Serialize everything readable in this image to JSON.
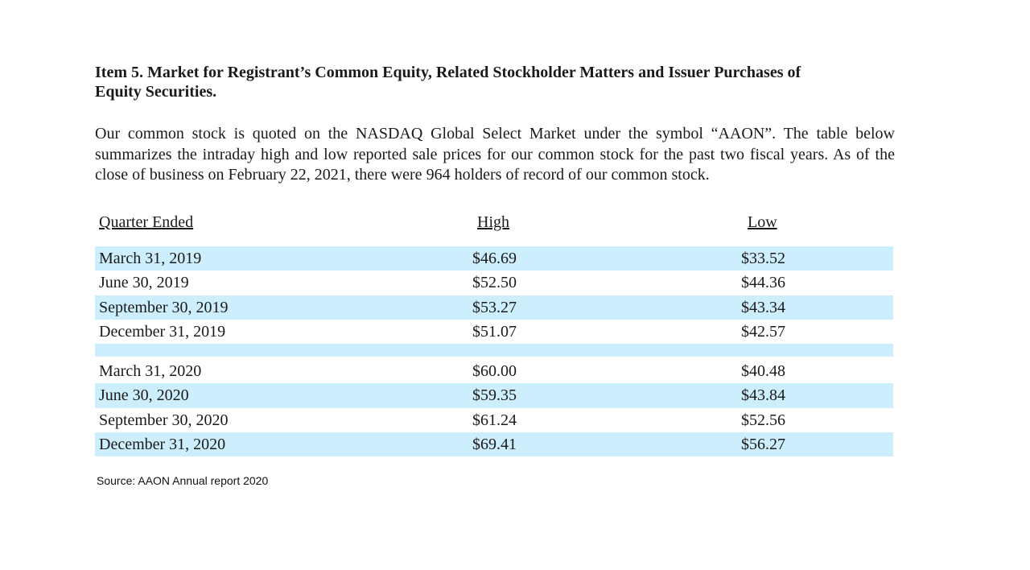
{
  "heading_line1": "Item 5.  Market for Registrant’s Common Equity, Related Stockholder Matters and Issuer Purchases of",
  "heading_line2": "Equity Securities.",
  "paragraph": "Our common stock is quoted on the NASDAQ Global Select Market under the symbol “AAON”. The table below summarizes the intraday high and low reported sale prices for our common stock for the past two fiscal years. As of the close of business on February 22, 2021, there were 964 holders of record of our common stock.",
  "table": {
    "headers": [
      "Quarter Ended",
      "High",
      "Low"
    ],
    "group_2019": [
      {
        "quarter": "March 31, 2019",
        "high": "$46.69",
        "low": "$33.52"
      },
      {
        "quarter": "June 30, 2019",
        "high": "$52.50",
        "low": "$44.36"
      },
      {
        "quarter": "September 30, 2019",
        "high": "$53.27",
        "low": "$43.34"
      },
      {
        "quarter": "December 31, 2019",
        "high": "$51.07",
        "low": "$42.57"
      }
    ],
    "group_2020": [
      {
        "quarter": "March 31, 2020",
        "high": "$60.00",
        "low": "$40.48"
      },
      {
        "quarter": "June 30, 2020",
        "high": "$59.35",
        "low": "$43.84"
      },
      {
        "quarter": "September 30, 2020",
        "high": "$61.24",
        "low": "$52.56"
      },
      {
        "quarter": "December 31, 2020",
        "high": "$69.41",
        "low": "$56.27"
      }
    ]
  },
  "source": "Source: AAON Annual report 2020",
  "colors": {
    "row_shade": "#cdeefc"
  }
}
